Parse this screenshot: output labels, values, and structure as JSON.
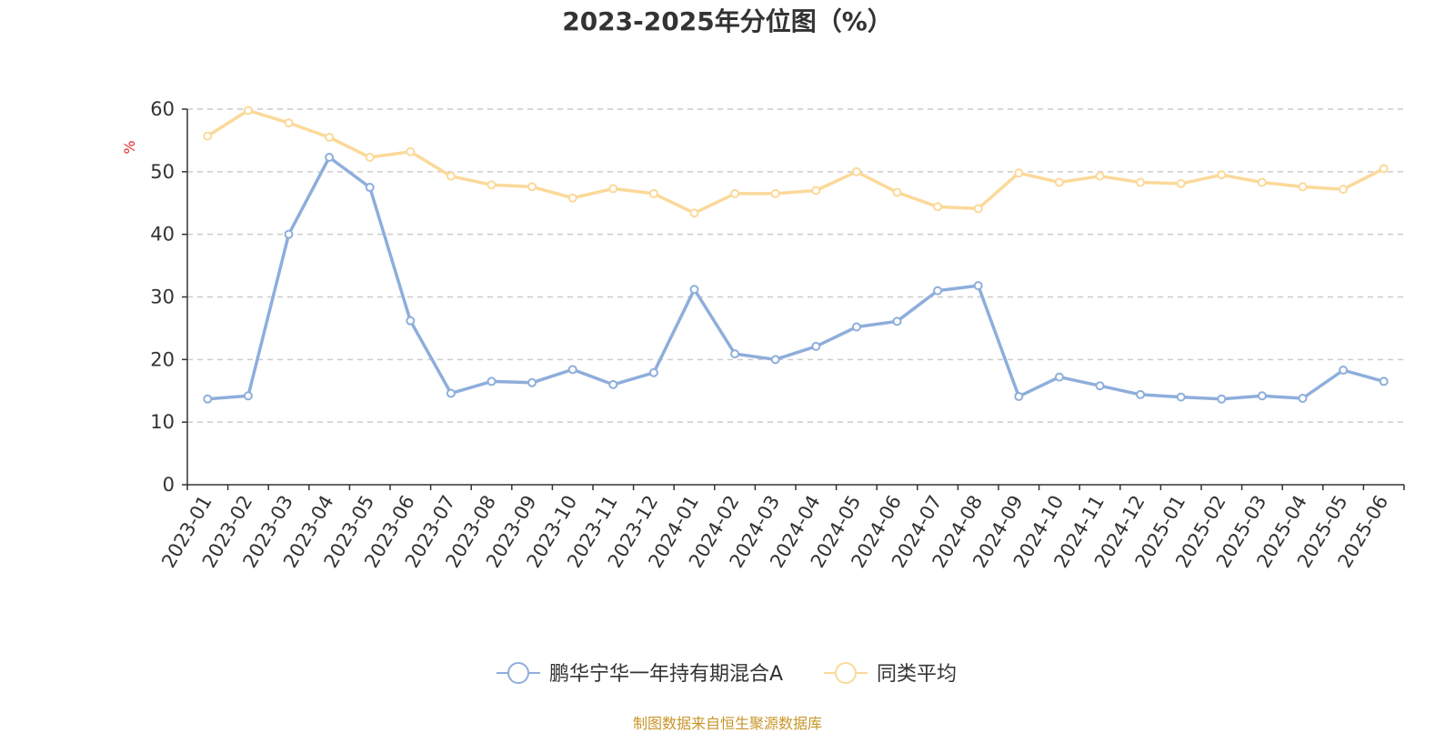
{
  "source_note": "制图数据来自恒生聚源数据库",
  "colors": {
    "series_main": "#8eaedb",
    "series_avg": "#fbd999",
    "ylabel": "#e6262e",
    "source": "#c8962a"
  },
  "chart_data": {
    "type": "line",
    "title": "2023-2025年分位图（%）",
    "xlabel": "",
    "ylabel": "%",
    "ylim": [
      0,
      60
    ],
    "yticks": [
      0,
      10,
      20,
      30,
      40,
      50,
      60
    ],
    "grid": true,
    "legend": "bottom-center",
    "categories": [
      "2023-01",
      "2023-02",
      "2023-03",
      "2023-04",
      "2023-05",
      "2023-06",
      "2023-07",
      "2023-08",
      "2023-09",
      "2023-10",
      "2023-11",
      "2023-12",
      "2024-01",
      "2024-02",
      "2024-03",
      "2024-04",
      "2024-05",
      "2024-06",
      "2024-07",
      "2024-08",
      "2024-09",
      "2024-10",
      "2024-11",
      "2024-12",
      "2025-01",
      "2025-02",
      "2025-03",
      "2025-04",
      "2025-05",
      "2025-06"
    ],
    "series": [
      {
        "name": "鹏华宁华一年持有期混合A",
        "color": "#8eaedb",
        "values": [
          13.7,
          14.2,
          40.0,
          52.3,
          47.5,
          26.2,
          14.6,
          16.5,
          16.3,
          18.4,
          16.0,
          17.9,
          31.2,
          20.9,
          20.0,
          22.1,
          25.2,
          26.1,
          31.0,
          31.8,
          14.1,
          17.2,
          15.8,
          14.4,
          14.0,
          13.7,
          14.2,
          13.8,
          18.3,
          16.5
        ]
      },
      {
        "name": "同类平均",
        "color": "#fbd999",
        "values": [
          55.7,
          59.8,
          57.8,
          55.5,
          52.3,
          53.2,
          49.3,
          47.9,
          47.6,
          45.8,
          47.3,
          46.5,
          43.4,
          46.5,
          46.5,
          47.0,
          50.0,
          46.7,
          44.4,
          44.1,
          49.8,
          48.3,
          49.3,
          48.3,
          48.1,
          49.5,
          48.3,
          47.6,
          47.2,
          50.5
        ]
      }
    ]
  }
}
